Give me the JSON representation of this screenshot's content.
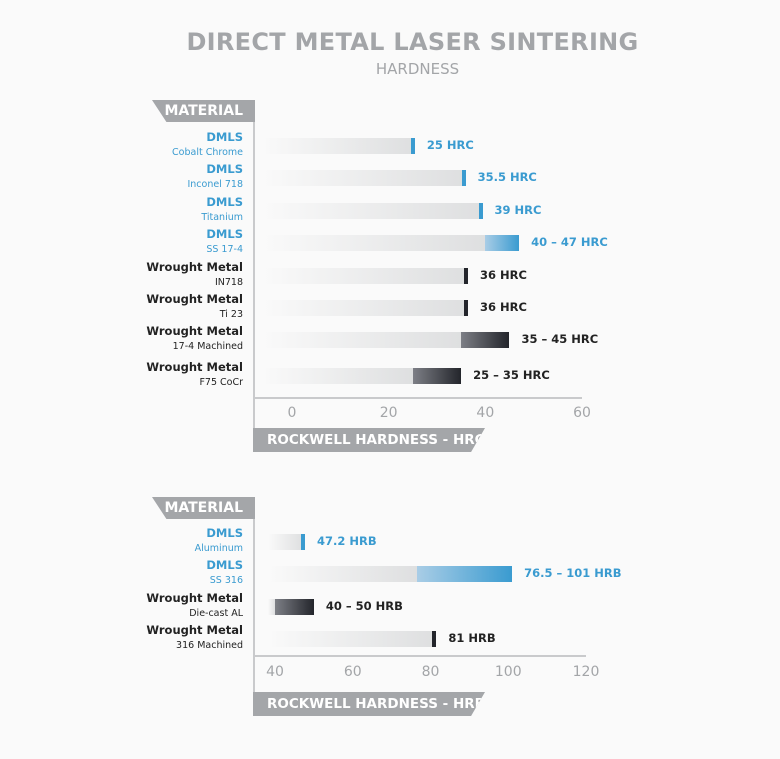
{
  "title": "DIRECT METAL LASER SINTERING",
  "subtitle": "HARDNESS",
  "colors": {
    "dmls": "#3a9bd0",
    "wrought": "#23252b",
    "label_dmls": "#3a9bd0",
    "label_wrought": "#222222",
    "axis_text": "#a3a5a8",
    "tab": "#a4a6a9"
  },
  "chart_data": [
    {
      "type": "bar",
      "orientation": "horizontal",
      "category_header": "MATERIAL",
      "xlabel": "ROCKWELL HARDNESS - HRC",
      "xlim": [
        0,
        60
      ],
      "xticks": [
        "0",
        "20",
        "40",
        "60"
      ],
      "rows": [
        {
          "process": "DMLS",
          "material": "Cobalt Chrome",
          "low": 25,
          "high": 25,
          "label": "25 HRC",
          "group": "dmls"
        },
        {
          "process": "DMLS",
          "material": "Inconel 718",
          "low": 35.5,
          "high": 35.5,
          "label": "35.5 HRC",
          "group": "dmls"
        },
        {
          "process": "DMLS",
          "material": "Titanium",
          "low": 39,
          "high": 39,
          "label": "39 HRC",
          "group": "dmls"
        },
        {
          "process": "DMLS",
          "material": "SS 17-4",
          "low": 40,
          "high": 47,
          "label": "40 – 47 HRC",
          "group": "dmls"
        },
        {
          "process": "Wrought Metal",
          "material": "IN718",
          "low": 36,
          "high": 36,
          "label": "36 HRC",
          "group": "wrought"
        },
        {
          "process": "Wrought Metal",
          "material": "Ti 23",
          "low": 36,
          "high": 36,
          "label": "36 HRC",
          "group": "wrought"
        },
        {
          "process": "Wrought Metal",
          "material": "17-4 Machined",
          "low": 35,
          "high": 45,
          "label": "35 – 45 HRC",
          "group": "wrought"
        },
        {
          "process": "Wrought Metal",
          "material": "F75 CoCr",
          "low": 25,
          "high": 35,
          "label": "25 – 35 HRC",
          "group": "wrought"
        }
      ]
    },
    {
      "type": "bar",
      "orientation": "horizontal",
      "category_header": "MATERIAL",
      "xlabel": "ROCKWELL HARDNESS  - HRB",
      "xlim": [
        40,
        120
      ],
      "xticks": [
        "40",
        "60",
        "80",
        "100",
        "120"
      ],
      "rows": [
        {
          "process": "DMLS",
          "material": "Aluminum",
          "low": 47.2,
          "high": 47.2,
          "label": "47.2 HRB",
          "group": "dmls"
        },
        {
          "process": "DMLS",
          "material": "SS 316",
          "low": 76.5,
          "high": 101,
          "label": "76.5 – 101 HRB",
          "group": "dmls"
        },
        {
          "process": "Wrought Metal",
          "material": "Die-cast AL",
          "low": 40,
          "high": 50,
          "label": "40 – 50 HRB",
          "group": "wrought"
        },
        {
          "process": "Wrought Metal",
          "material": "316 Machined",
          "low": 81,
          "high": 81,
          "label": "81 HRB",
          "group": "wrought"
        }
      ]
    }
  ]
}
